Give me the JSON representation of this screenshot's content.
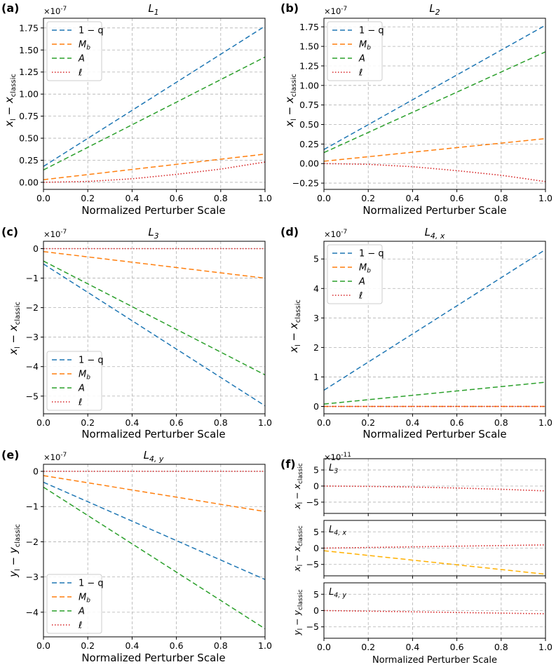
{
  "xlabel": "Normalized Perturber Scale",
  "series_styles": {
    "1-q": {
      "color": "#1f77b4",
      "dash": "7 4"
    },
    "Mb": {
      "color": "#ff7f0e",
      "dash": "7 4"
    },
    "A": {
      "color": "#2ca02c",
      "dash": "7 4"
    },
    "ell": {
      "color": "#d62728",
      "dash": "1.5 2.5"
    },
    "gold": {
      "color": "#ffb000",
      "dash": "7 4"
    }
  },
  "panels": [
    {
      "label": "(a)",
      "title": "L",
      "sub": "1",
      "ylabel": "x_l - x_classic",
      "offset_exp": "-7"
    },
    {
      "label": "(b)",
      "title": "L",
      "sub": "2",
      "ylabel": "x_l - x_classic",
      "offset_exp": "-7"
    },
    {
      "label": "(c)",
      "title": "L",
      "sub": "3",
      "ylabel": "x_l - x_classic",
      "offset_exp": "-7"
    },
    {
      "label": "(d)",
      "title": "L",
      "sub": "4, x",
      "ylabel": "x_l - x_classic",
      "offset_exp": "-7"
    },
    {
      "label": "(e)",
      "title": "L",
      "sub": "4, y",
      "ylabel": "y_l - y_classic",
      "offset_exp": "-7"
    },
    {
      "label": "(f)",
      "offset_exp": "-11"
    }
  ],
  "chart_data": [
    {
      "id": "a",
      "type": "line",
      "title": "L1",
      "xlabel": "Normalized Perturber Scale",
      "ylabel": "x_l − x_classic",
      "xlim": [
        0,
        1
      ],
      "ylim": [
        -0.08,
        1.86
      ],
      "y_scale": "1e-7",
      "xticks": [
        0,
        0.2,
        0.4,
        0.6,
        0.8,
        1.0
      ],
      "xtick_labels": [
        "0.0",
        "0.2",
        "0.4",
        "0.6",
        "0.8",
        "1.0"
      ],
      "yticks": [
        0,
        0.25,
        0.5,
        0.75,
        1.0,
        1.25,
        1.5,
        1.75
      ],
      "ytick_labels": [
        "0.00",
        "0.25",
        "0.50",
        "0.75",
        "1.00",
        "1.25",
        "1.50",
        "1.75"
      ],
      "legend": "top-left",
      "series": [
        {
          "name": "1 − q",
          "key": "1-q",
          "x": [
            0,
            1
          ],
          "y": [
            0.18,
            1.77
          ]
        },
        {
          "name": "M_b",
          "key": "Mb",
          "x": [
            0,
            1
          ],
          "y": [
            0.03,
            0.32
          ]
        },
        {
          "name": "A",
          "key": "A",
          "x": [
            0,
            1
          ],
          "y": [
            0.14,
            1.42
          ]
        },
        {
          "name": "ℓ",
          "key": "ell",
          "x": [
            0,
            0.2,
            0.4,
            0.6,
            0.8,
            1.0
          ],
          "y": [
            0.0,
            0.01,
            0.04,
            0.09,
            0.15,
            0.23
          ]
        }
      ]
    },
    {
      "id": "b",
      "type": "line",
      "title": "L2",
      "xlabel": "Normalized Perturber Scale",
      "ylabel": "x_l − x_classic",
      "xlim": [
        0,
        1
      ],
      "ylim": [
        -0.33,
        1.86
      ],
      "y_scale": "1e-7",
      "xticks": [
        0,
        0.2,
        0.4,
        0.6,
        0.8,
        1.0
      ],
      "xtick_labels": [
        "0.0",
        "0.2",
        "0.4",
        "0.6",
        "0.8",
        "1.0"
      ],
      "yticks": [
        -0.25,
        0,
        0.25,
        0.5,
        0.75,
        1.0,
        1.25,
        1.5,
        1.75
      ],
      "ytick_labels": [
        "−0.25",
        "0.00",
        "0.25",
        "0.50",
        "0.75",
        "1.00",
        "1.25",
        "1.50",
        "1.75"
      ],
      "legend": "top-left",
      "series": [
        {
          "name": "1 − q",
          "key": "1-q",
          "x": [
            0,
            1
          ],
          "y": [
            0.18,
            1.77
          ]
        },
        {
          "name": "M_b",
          "key": "Mb",
          "x": [
            0,
            1
          ],
          "y": [
            0.03,
            0.32
          ]
        },
        {
          "name": "A",
          "key": "A",
          "x": [
            0,
            1
          ],
          "y": [
            0.14,
            1.43
          ]
        },
        {
          "name": "ℓ",
          "key": "ell",
          "x": [
            0,
            0.2,
            0.4,
            0.6,
            0.8,
            1.0
          ],
          "y": [
            0.0,
            -0.01,
            -0.04,
            -0.09,
            -0.15,
            -0.23
          ]
        }
      ]
    },
    {
      "id": "c",
      "type": "line",
      "title": "L3",
      "xlabel": "Normalized Perturber Scale",
      "ylabel": "x_l − x_classic",
      "xlim": [
        0,
        1
      ],
      "ylim": [
        -5.6,
        0.25
      ],
      "y_scale": "1e-7",
      "xticks": [
        0,
        0.2,
        0.4,
        0.6,
        0.8,
        1.0
      ],
      "xtick_labels": [
        "0.0",
        "0.2",
        "0.4",
        "0.6",
        "0.8",
        "1.0"
      ],
      "yticks": [
        -5,
        -4,
        -3,
        -2,
        -1,
        0
      ],
      "ytick_labels": [
        "−5",
        "−4",
        "−3",
        "−2",
        "−1",
        "0"
      ],
      "legend": "bottom-left",
      "series": [
        {
          "name": "1 − q",
          "key": "1-q",
          "x": [
            0,
            1
          ],
          "y": [
            -0.52,
            -5.33
          ]
        },
        {
          "name": "M_b",
          "key": "Mb",
          "x": [
            0,
            1
          ],
          "y": [
            -0.1,
            -1.0
          ]
        },
        {
          "name": "A",
          "key": "A",
          "x": [
            0,
            1
          ],
          "y": [
            -0.42,
            -4.28
          ]
        },
        {
          "name": "ℓ",
          "key": "ell",
          "x": [
            0,
            1
          ],
          "y": [
            0.0,
            0.0
          ]
        }
      ]
    },
    {
      "id": "d",
      "type": "line",
      "title": "L4,x",
      "xlabel": "Normalized Perturber Scale",
      "ylabel": "x_l − x_classic",
      "xlim": [
        0,
        1
      ],
      "ylim": [
        -0.25,
        5.6
      ],
      "y_scale": "1e-7",
      "xticks": [
        0,
        0.2,
        0.4,
        0.6,
        0.8,
        1.0
      ],
      "xtick_labels": [
        "0.0",
        "0.2",
        "0.4",
        "0.6",
        "0.8",
        "1.0"
      ],
      "yticks": [
        0,
        1,
        2,
        3,
        4,
        5
      ],
      "ytick_labels": [
        "0",
        "1",
        "2",
        "3",
        "4",
        "5"
      ],
      "legend": "top-left",
      "series": [
        {
          "name": "1 − q",
          "key": "1-q",
          "x": [
            0,
            1
          ],
          "y": [
            0.55,
            5.32
          ]
        },
        {
          "name": "M_b",
          "key": "Mb",
          "x": [
            0,
            1
          ],
          "y": [
            0.0,
            0.0
          ]
        },
        {
          "name": "A",
          "key": "A",
          "x": [
            0,
            1
          ],
          "y": [
            0.08,
            0.82
          ]
        },
        {
          "name": "ℓ",
          "key": "ell",
          "x": [
            0,
            1
          ],
          "y": [
            0.0,
            0.0
          ]
        }
      ]
    },
    {
      "id": "e",
      "type": "line",
      "title": "L4,y",
      "xlabel": "Normalized Perturber Scale",
      "ylabel": "y_l − y_classic",
      "xlim": [
        0,
        1
      ],
      "ylim": [
        -4.7,
        0.2
      ],
      "y_scale": "1e-7",
      "xticks": [
        0,
        0.2,
        0.4,
        0.6,
        0.8,
        1.0
      ],
      "xtick_labels": [
        "0.0",
        "0.2",
        "0.4",
        "0.6",
        "0.8",
        "1.0"
      ],
      "yticks": [
        -4,
        -3,
        -2,
        -1,
        0
      ],
      "ytick_labels": [
        "−4",
        "−3",
        "−2",
        "−1",
        "0"
      ],
      "legend": "bottom-left",
      "series": [
        {
          "name": "1 − q",
          "key": "1-q",
          "x": [
            0,
            1
          ],
          "y": [
            -0.31,
            -3.07
          ]
        },
        {
          "name": "M_b",
          "key": "Mb",
          "x": [
            0,
            1
          ],
          "y": [
            -0.12,
            -1.14
          ]
        },
        {
          "name": "A",
          "key": "A",
          "x": [
            0,
            1
          ],
          "y": [
            -0.45,
            -4.47
          ]
        },
        {
          "name": "ℓ",
          "key": "ell",
          "x": [
            0,
            1
          ],
          "y": [
            0.0,
            0.0
          ]
        }
      ]
    },
    {
      "id": "f1",
      "type": "line",
      "label": "L3",
      "xlabel": "",
      "ylabel": "x_l − x_classic",
      "xlim": [
        0,
        1
      ],
      "ylim": [
        -8.5,
        8.5
      ],
      "y_scale": "1e-11",
      "xticks": [
        0,
        0.2,
        0.4,
        0.6,
        0.8,
        1.0
      ],
      "xtick_labels": [],
      "yticks": [
        -5,
        0,
        5
      ],
      "ytick_labels": [
        "−5",
        "0",
        "5"
      ],
      "series": [
        {
          "name": "ℓ",
          "key": "ell",
          "x": [
            0,
            0.2,
            0.4,
            0.6,
            0.8,
            1.0
          ],
          "y": [
            0.0,
            -0.1,
            -0.3,
            -0.6,
            -1.0,
            -1.5
          ]
        }
      ]
    },
    {
      "id": "f2",
      "type": "line",
      "label": "L4,x",
      "xlabel": "",
      "ylabel": "x_l − x_classic",
      "xlim": [
        0,
        1
      ],
      "ylim": [
        -8.5,
        8.5
      ],
      "y_scale": "1e-11",
      "xticks": [
        0,
        0.2,
        0.4,
        0.6,
        0.8,
        1.0
      ],
      "xtick_labels": [],
      "yticks": [
        -5,
        0,
        5
      ],
      "ytick_labels": [
        "−5",
        "0",
        "5"
      ],
      "series": [
        {
          "name": "ℓ",
          "key": "ell",
          "x": [
            0,
            1
          ],
          "y": [
            0.0,
            1.0
          ]
        },
        {
          "name": "gold",
          "key": "gold",
          "x": [
            0,
            1
          ],
          "y": [
            -0.8,
            -8.0
          ]
        }
      ]
    },
    {
      "id": "f3",
      "type": "line",
      "label": "L4,y",
      "xlabel": "Normalized Perturber Scale",
      "ylabel": "y_l − y_classic",
      "xlim": [
        0,
        1
      ],
      "ylim": [
        -8.5,
        8.5
      ],
      "y_scale": "1e-11",
      "xticks": [
        0,
        0.2,
        0.4,
        0.6,
        0.8,
        1.0
      ],
      "xtick_labels": [
        "0.0",
        "0.2",
        "0.4",
        "0.6",
        "0.8",
        "1.0"
      ],
      "yticks": [
        -5,
        0,
        5
      ],
      "ytick_labels": [
        "−5",
        "0",
        "5"
      ],
      "series": [
        {
          "name": "ℓ",
          "key": "ell",
          "x": [
            0,
            1
          ],
          "y": [
            0.0,
            -1.0
          ]
        }
      ]
    }
  ]
}
